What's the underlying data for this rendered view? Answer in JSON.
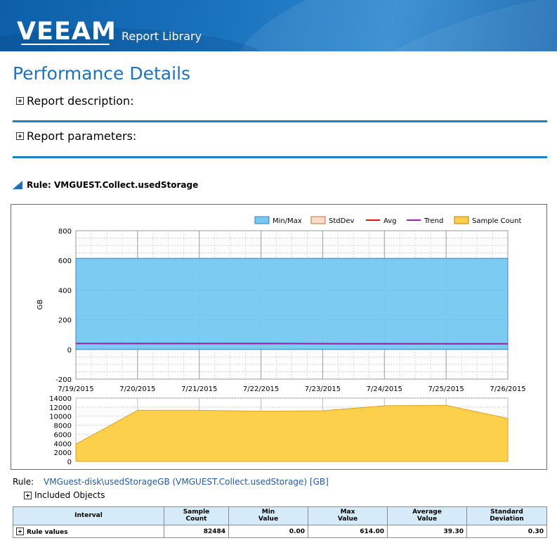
{
  "header": {
    "logo": "VEEAM",
    "title": "Report Library",
    "bg_color": "#1466b0"
  },
  "page": {
    "title": "Performance Details"
  },
  "sections": {
    "description": "Report description:",
    "parameters": "Report parameters:"
  },
  "rule_header": "Rule: VMGUEST.Collect.usedStorage",
  "chart_data": [
    {
      "type": "area",
      "ylabel": "GB",
      "ylim": [
        -200,
        800
      ],
      "yticks": [
        -200,
        0,
        200,
        400,
        600,
        800
      ],
      "xticks": [
        "7/19/2015",
        "7/20/2015",
        "7/21/2015",
        "7/22/2015",
        "7/23/2015",
        "7/24/2015",
        "7/25/2015",
        "7/26/2015"
      ],
      "legend": [
        "Min/Max",
        "StdDev",
        "Avg",
        "Trend",
        "Sample Count"
      ],
      "legend_position": "top-right",
      "colors": {
        "minmax": "#74c8f2",
        "stddev": "#f8dcc8",
        "avg": "#e01010",
        "trend": "#a020a0",
        "count": "#fcd04a"
      },
      "series": [
        {
          "name": "Min/Max",
          "min": [
            0,
            0,
            0,
            0,
            0,
            0,
            0,
            0
          ],
          "max": [
            614,
            614,
            614,
            614,
            614,
            614,
            614,
            614
          ]
        },
        {
          "name": "Avg",
          "values": [
            40,
            40,
            40,
            40,
            39,
            38,
            38,
            38
          ]
        },
        {
          "name": "Trend",
          "values": [
            40.5,
            40,
            39.7,
            39.4,
            39,
            38.7,
            38.4,
            38
          ]
        }
      ],
      "grid": true
    },
    {
      "type": "area",
      "name": "Sample Count",
      "ylim": [
        0,
        14000
      ],
      "yticks": [
        0,
        2000,
        4000,
        6000,
        8000,
        10000,
        12000,
        14000
      ],
      "x": [
        "7/19/2015",
        "7/20/2015",
        "7/21/2015",
        "7/22/2015",
        "7/23/2015",
        "7/24/2015",
        "7/25/2015",
        "7/26/2015"
      ],
      "values": [
        3800,
        11300,
        11300,
        11100,
        11200,
        12300,
        12400,
        9500
      ],
      "grid": true
    }
  ],
  "rule": {
    "label": "Rule:",
    "value": "VMGuest-disk\\usedStorageGB (VMGUEST.Collect.usedStorage) [GB]"
  },
  "included_objects": "Included Objects",
  "table": {
    "headers": [
      "Interval",
      "Sample\nCount",
      "Min\nValue",
      "Max\nValue",
      "Average\nValue",
      "Standard\nDeviation"
    ],
    "rows": [
      {
        "interval": "Rule values",
        "sample_count": "82484",
        "min": "0.00",
        "max": "614.00",
        "avg": "39.30",
        "stddev": "0.30"
      }
    ]
  }
}
